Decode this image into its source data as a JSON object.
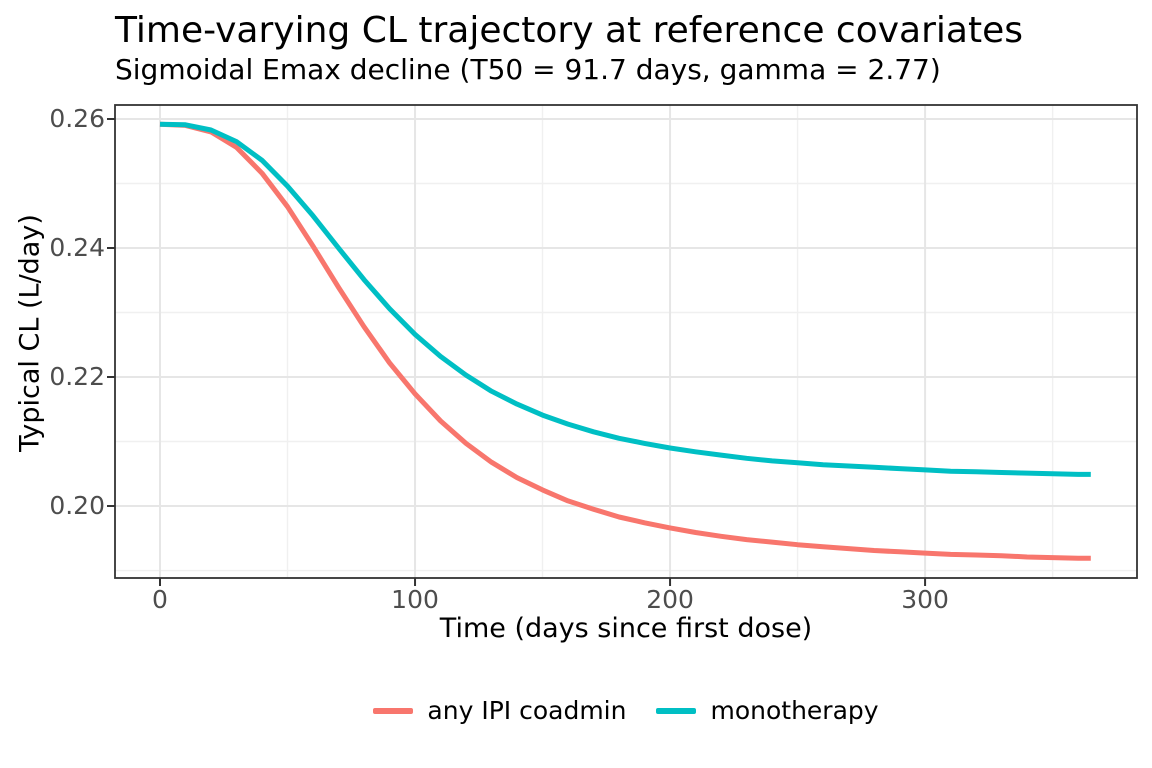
{
  "figure": {
    "title": "Time-varying CL trajectory at reference covariates",
    "subtitle": "Sigmoidal Emax decline (T50 = 91.7 days, gamma = 2.77)",
    "background_color": "#ffffff"
  },
  "chart_data": {
    "type": "line",
    "title": "Time-varying CL trajectory at reference covariates",
    "subtitle": "Sigmoidal Emax decline (T50 = 91.7 days, gamma = 2.77)",
    "xlabel": "Time (days since first dose)",
    "ylabel": "Typical CL (L/day)",
    "grid": true,
    "legend_position": "bottom",
    "x_domain": [
      -17.65,
      383.1
    ],
    "y_domain": [
      0.18884,
      0.26217
    ],
    "x_ticks": {
      "major": [
        0,
        100,
        200,
        300
      ],
      "minor": [
        50,
        150,
        250,
        350
      ],
      "labels": [
        "0",
        "100",
        "200",
        "300"
      ]
    },
    "y_ticks": {
      "major": [
        0.2,
        0.22,
        0.24,
        0.26
      ],
      "minor": [
        0.19,
        0.21,
        0.23,
        0.25
      ],
      "labels": [
        "0.20",
        "0.22",
        "0.24",
        "0.26"
      ]
    },
    "model": {
      "T50_days": 91.7,
      "gamma": 2.77
    },
    "x": [
      0,
      10,
      20,
      30,
      40,
      50,
      60,
      70,
      80,
      90,
      100,
      110,
      120,
      130,
      140,
      150,
      160,
      170,
      180,
      190,
      200,
      210,
      220,
      230,
      240,
      250,
      260,
      270,
      280,
      290,
      300,
      310,
      320,
      330,
      340,
      350,
      360,
      365
    ],
    "series": [
      {
        "name": "any IPI coadmin",
        "color": "#F8766D",
        "values": [
          0.2592,
          0.259,
          0.258,
          0.2556,
          0.2516,
          0.2464,
          0.2403,
          0.2339,
          0.2278,
          0.2222,
          0.2174,
          0.2132,
          0.2097,
          0.2068,
          0.2044,
          0.2025,
          0.2008,
          0.1995,
          0.1983,
          0.1974,
          0.1966,
          0.1959,
          0.1953,
          0.1948,
          0.1944,
          0.194,
          0.1937,
          0.1934,
          0.1931,
          0.1929,
          0.1927,
          0.1925,
          0.1924,
          0.1923,
          0.1921,
          0.192,
          0.1919,
          0.1919
        ]
      },
      {
        "name": "monotherapy",
        "color": "#00BFC4",
        "values": [
          0.2592,
          0.2591,
          0.2583,
          0.2565,
          0.2536,
          0.2496,
          0.245,
          0.24,
          0.2351,
          0.2306,
          0.2266,
          0.2232,
          0.2203,
          0.2178,
          0.2158,
          0.2141,
          0.2127,
          0.2115,
          0.2105,
          0.2097,
          0.209,
          0.2084,
          0.2079,
          0.2074,
          0.207,
          0.2067,
          0.2064,
          0.2062,
          0.206,
          0.2058,
          0.2056,
          0.2054,
          0.2053,
          0.2052,
          0.2051,
          0.205,
          0.2049,
          0.2049
        ]
      }
    ],
    "styles": {
      "panel_border_color": "#333333",
      "grid_major_color": "#e6e6e6",
      "grid_minor_color": "#f0f0f0",
      "tick_mark_color": "#333333",
      "tick_label_color": "#4d4d4d",
      "line_width": 5
    }
  },
  "legend": {
    "items": [
      {
        "label": "any IPI coadmin",
        "color": "#F8766D"
      },
      {
        "label": "monotherapy",
        "color": "#00BFC4"
      }
    ]
  }
}
